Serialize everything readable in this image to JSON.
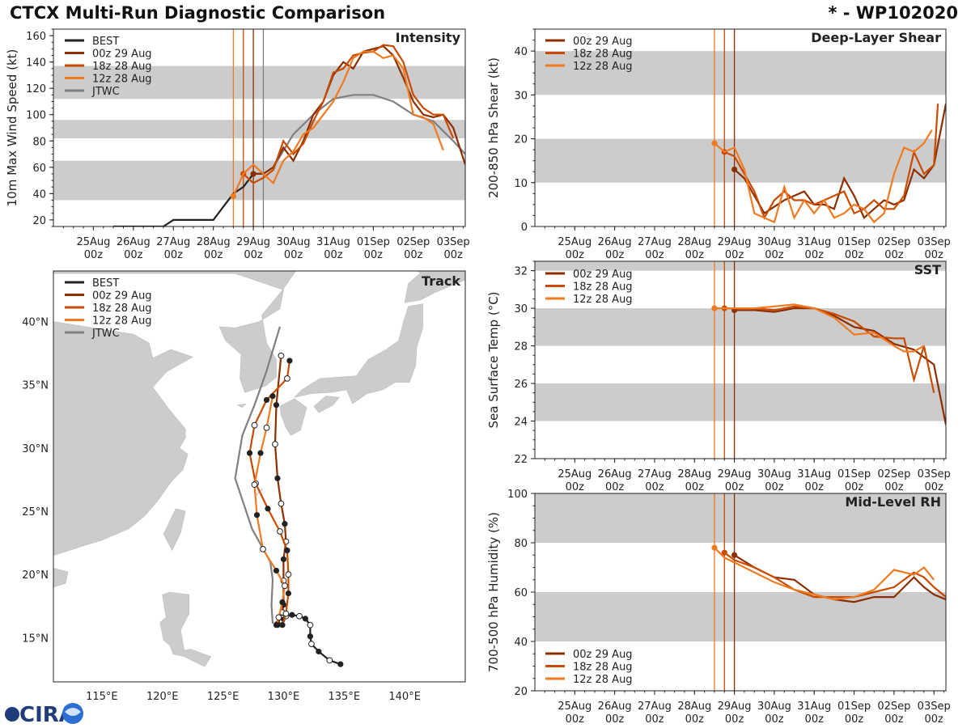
{
  "header": {
    "title": "CTCX Multi-Run Diagnostic Comparison",
    "storm": "* - WP102020"
  },
  "logo": {
    "name": "CIRA"
  },
  "colors": {
    "best": "#222222",
    "run00": "#8b2e00",
    "run18": "#c84b00",
    "run12": "#f07a20",
    "jtwc": "#808080",
    "band": "#cccccc"
  },
  "time_ticks": [
    "25Aug\n00z",
    "26Aug\n00z",
    "27Aug\n00z",
    "28Aug\n00z",
    "29Aug\n00z",
    "30Aug\n00z",
    "31Aug\n00z",
    "01Sep\n00z",
    "02Sep\n00z",
    "03Sep\n00z"
  ],
  "legend": {
    "best": "BEST",
    "run00": "00z 29 Aug",
    "run18": "18z 28 Aug",
    "run12": "12z 28 Aug",
    "jtwc": "JTWC"
  },
  "chart_data": [
    {
      "type": "line",
      "id": "intensity",
      "title": "Intensity",
      "ylabel": "10m Max Wind Speed (kt)",
      "xlim": [
        24.0,
        34.3
      ],
      "ylim": [
        15,
        165
      ],
      "yticks": [
        20,
        40,
        60,
        80,
        100,
        120,
        140,
        160
      ],
      "bands": [
        [
          35,
          65
        ],
        [
          82,
          96
        ],
        [
          112,
          137
        ]
      ],
      "init_lines": [
        28.5,
        28.75,
        29.0,
        29.25
      ],
      "series": [
        {
          "key": "best",
          "x": [
            25.5,
            26.5,
            26.75,
            27,
            27.5,
            28,
            28.25,
            28.5,
            28.75,
            29.0,
            29.25
          ],
          "y": [
            15,
            15,
            15,
            20,
            20,
            20,
            30,
            40,
            45,
            55,
            55
          ]
        },
        {
          "key": "jtwc",
          "x": [
            29.25,
            29.5,
            30,
            30.5,
            31,
            31.5,
            32,
            32.5,
            33,
            33.5,
            34,
            34.3
          ],
          "y": [
            55,
            60,
            85,
            100,
            112,
            115,
            115,
            110,
            100,
            95,
            80,
            70
          ]
        },
        {
          "key": "run00",
          "x": [
            29,
            29.25,
            29.5,
            29.75,
            30,
            30.25,
            30.5,
            30.75,
            31,
            31.25,
            31.5,
            31.75,
            32,
            32.25,
            32.5,
            32.75,
            33,
            33.25,
            33.5,
            33.75,
            34,
            34.3
          ],
          "y": [
            55,
            55,
            60,
            75,
            65,
            80,
            100,
            110,
            130,
            140,
            135,
            148,
            150,
            152,
            145,
            128,
            110,
            100,
            98,
            100,
            90,
            62
          ]
        },
        {
          "key": "run18",
          "x": [
            28.75,
            29,
            29.25,
            29.5,
            29.75,
            30,
            30.25,
            30.5,
            30.75,
            31,
            31.25,
            31.5,
            31.75,
            32,
            32.25,
            32.5,
            32.75,
            33,
            33.25,
            33.5,
            33.75,
            34
          ],
          "y": [
            55,
            48,
            52,
            58,
            80,
            70,
            78,
            95,
            110,
            132,
            135,
            145,
            147,
            148,
            153,
            152,
            140,
            115,
            105,
            100,
            100,
            82
          ]
        },
        {
          "key": "run12",
          "x": [
            28.5,
            28.75,
            29,
            29.25,
            29.5,
            29.75,
            30,
            30.25,
            30.5,
            30.75,
            31,
            31.25,
            31.5,
            31.75,
            32,
            32.25,
            32.5,
            32.75,
            33,
            33.25,
            33.5,
            33.75
          ],
          "y": [
            38,
            55,
            62,
            55,
            48,
            65,
            72,
            85,
            90,
            100,
            110,
            125,
            143,
            148,
            148,
            143,
            145,
            135,
            100,
            98,
            93,
            73
          ]
        }
      ]
    },
    {
      "type": "line",
      "id": "shear",
      "title": "Deep-Layer Shear",
      "ylabel": "200-850 hPa Shear (kt)",
      "xlim": [
        24.0,
        34.3
      ],
      "ylim": [
        0,
        45
      ],
      "yticks": [
        0,
        10,
        20,
        30,
        40
      ],
      "bands": [
        [
          10,
          20
        ],
        [
          30,
          40
        ]
      ],
      "init_lines": [
        28.5,
        28.75,
        29.0
      ],
      "series": [
        {
          "key": "run00",
          "x": [
            29,
            29.25,
            29.5,
            29.75,
            30,
            30.25,
            30.5,
            30.75,
            31,
            31.25,
            31.5,
            31.75,
            32,
            32.25,
            32.5,
            32.75,
            33,
            33.25,
            33.5,
            33.75,
            34,
            34.3
          ],
          "y": [
            13,
            11,
            7,
            3,
            4.5,
            6,
            7,
            8,
            5,
            5,
            4,
            11,
            7,
            2,
            4,
            6,
            5,
            6,
            13,
            11,
            14,
            28
          ]
        },
        {
          "key": "run18",
          "x": [
            28.75,
            29,
            29.25,
            29.5,
            29.75,
            30,
            30.25,
            30.5,
            30.75,
            31,
            31.25,
            31.5,
            31.75,
            32,
            32.25,
            32.5,
            32.75,
            33,
            33.25,
            33.5,
            33.75,
            34,
            34.1
          ],
          "y": [
            17,
            16,
            12,
            8,
            2,
            6,
            8,
            6,
            6,
            5,
            6,
            7,
            8,
            3,
            4,
            6,
            4,
            4,
            7,
            17,
            12,
            14,
            28
          ]
        },
        {
          "key": "run12",
          "x": [
            28.5,
            28.75,
            29,
            29.25,
            29.5,
            29.75,
            30,
            30.25,
            30.5,
            30.75,
            31,
            31.25,
            31.5,
            31.75,
            32,
            32.25,
            32.5,
            32.75,
            33,
            33.25,
            33.5,
            33.75,
            33.95
          ],
          "y": [
            19,
            17,
            18,
            13,
            3,
            2,
            1,
            9,
            2,
            6,
            3,
            6,
            2,
            3,
            5,
            4,
            1,
            3,
            12,
            18,
            17,
            19,
            22
          ]
        }
      ]
    },
    {
      "type": "line",
      "id": "sst",
      "title": "SST",
      "ylabel": "Sea Surface Temp (°C)",
      "xlim": [
        24.0,
        34.3
      ],
      "ylim": [
        22,
        32.5
      ],
      "yticks": [
        22,
        24,
        26,
        28,
        30,
        32
      ],
      "bands": [
        [
          24,
          26
        ],
        [
          28,
          30
        ],
        [
          32,
          33
        ]
      ],
      "init_lines": [
        28.5,
        28.75,
        29.0
      ],
      "series": [
        {
          "key": "run00",
          "x": [
            29,
            29.5,
            30,
            30.5,
            31,
            31.5,
            32,
            32.5,
            33,
            33.5,
            34,
            34.3
          ],
          "y": [
            29.9,
            29.9,
            29.8,
            30.0,
            30.0,
            29.6,
            29.0,
            28.8,
            28.1,
            27.8,
            27.0,
            23.8
          ]
        },
        {
          "key": "run18",
          "x": [
            28.75,
            29,
            29.5,
            30,
            30.5,
            31,
            31.5,
            32,
            32.5,
            33,
            33.25,
            33.5,
            33.75,
            34
          ],
          "y": [
            30.0,
            30.0,
            30.0,
            29.9,
            30.1,
            30.0,
            29.7,
            29.3,
            28.5,
            28.4,
            28.4,
            26.2,
            28.0,
            25.5
          ]
        },
        {
          "key": "run12",
          "x": [
            28.5,
            28.75,
            29,
            29.5,
            30,
            30.5,
            31,
            31.5,
            32,
            32.5,
            33,
            33.25,
            33.5,
            33.75
          ],
          "y": [
            30.0,
            30.0,
            30.0,
            30.0,
            30.1,
            30.2,
            30.0,
            29.5,
            28.6,
            28.7,
            28.0,
            27.7,
            27.7,
            28.0
          ]
        }
      ]
    },
    {
      "type": "line",
      "id": "rh",
      "title": "Mid-Level RH",
      "ylabel": "700-500 hPa Humidity (%)",
      "xlim": [
        24.0,
        34.3
      ],
      "ylim": [
        20,
        100
      ],
      "yticks": [
        20,
        40,
        60,
        80,
        100
      ],
      "bands": [
        [
          40,
          60
        ],
        [
          80,
          100
        ]
      ],
      "init_lines": [
        28.5,
        28.75,
        29.0
      ],
      "series": [
        {
          "key": "run00",
          "x": [
            29,
            29.5,
            30,
            30.5,
            31,
            31.5,
            32,
            32.5,
            33,
            33.25,
            33.5,
            33.75,
            34,
            34.3
          ],
          "y": [
            75,
            70,
            66,
            65,
            59,
            57,
            56,
            58,
            58,
            62,
            66,
            62,
            59,
            57
          ]
        },
        {
          "key": "run18",
          "x": [
            28.75,
            29,
            29.5,
            30,
            30.5,
            31,
            31.5,
            32,
            32.5,
            33,
            33.5,
            33.75,
            34,
            34.3
          ],
          "y": [
            76,
            73,
            70,
            66,
            61,
            58,
            58,
            58,
            60,
            62,
            68,
            66,
            62,
            58
          ]
        },
        {
          "key": "run12",
          "x": [
            28.5,
            28.75,
            29,
            29.5,
            30,
            30.5,
            31,
            31.5,
            32,
            32.5,
            33,
            33.5,
            33.75,
            34
          ],
          "y": [
            78,
            74,
            72,
            68,
            64,
            61,
            59,
            57,
            58,
            61,
            69,
            67,
            70,
            65
          ]
        }
      ]
    },
    {
      "type": "map",
      "id": "track",
      "title": "Track",
      "lon_range": [
        111,
        145
      ],
      "lat_range": [
        11.5,
        44
      ],
      "lon_ticks": [
        115,
        120,
        125,
        130,
        135,
        140
      ],
      "lat_ticks": [
        15,
        20,
        25,
        30,
        35,
        40
      ],
      "lon_labels": [
        "115°E",
        "120°E",
        "125°E",
        "130°E",
        "135°E",
        "140°E"
      ],
      "lat_labels": [
        "15°N",
        "20°N",
        "25°N",
        "30°N",
        "35°N",
        "40°N"
      ],
      "tracks": [
        {
          "key": "best",
          "lon": [
            134.7,
            133.8,
            132.9,
            132.3,
            132.2,
            132.2,
            131.8,
            131.3,
            130.7,
            130.2,
            129.9,
            129.7,
            129.5
          ],
          "lat": [
            12.9,
            13.2,
            13.9,
            14.5,
            15.1,
            16.0,
            16.5,
            16.7,
            16.8,
            16.7,
            16.4,
            16.2,
            16.1
          ]
        },
        {
          "key": "jtwc",
          "lon": [
            129.1,
            129.0,
            129.1,
            128.9,
            127.4,
            126.0,
            126.6,
            127.6,
            128.6,
            129.7
          ],
          "lat": [
            16.1,
            17.6,
            19.6,
            21.0,
            23.6,
            27.6,
            31.0,
            33.4,
            36.1,
            39.6
          ]
        },
        {
          "key": "run00",
          "lon": [
            129.5,
            129.9,
            130.0,
            130.0,
            130.0,
            130.2,
            130.1,
            129.8,
            129.5,
            129.3,
            129.4,
            129.8
          ],
          "lat": [
            16.0,
            17.0,
            17.6,
            19.5,
            21.2,
            22.6,
            24.0,
            25.6,
            27.6,
            30.3,
            33.4,
            37.3
          ]
        },
        {
          "key": "run18",
          "lon": [
            129.9,
            130.2,
            130.4,
            130.4,
            130.3,
            129.7,
            128.7,
            127.7,
            127.2,
            127.6,
            128.6,
            130.3,
            130.5
          ],
          "lat": [
            16.0,
            16.9,
            18.5,
            20.0,
            21.9,
            23.4,
            25.2,
            27.2,
            29.6,
            31.8,
            33.8,
            35.5,
            36.9
          ]
        },
        {
          "key": "run12",
          "lon": [
            129.4,
            129.6,
            129.9,
            130.1,
            129.4,
            128.3,
            127.8,
            127.6,
            128.1,
            128.6,
            129.1
          ],
          "lat": [
            16.0,
            16.6,
            17.8,
            19.1,
            20.3,
            22.0,
            24.7,
            27.1,
            29.6,
            31.6,
            34.1
          ]
        }
      ]
    }
  ]
}
